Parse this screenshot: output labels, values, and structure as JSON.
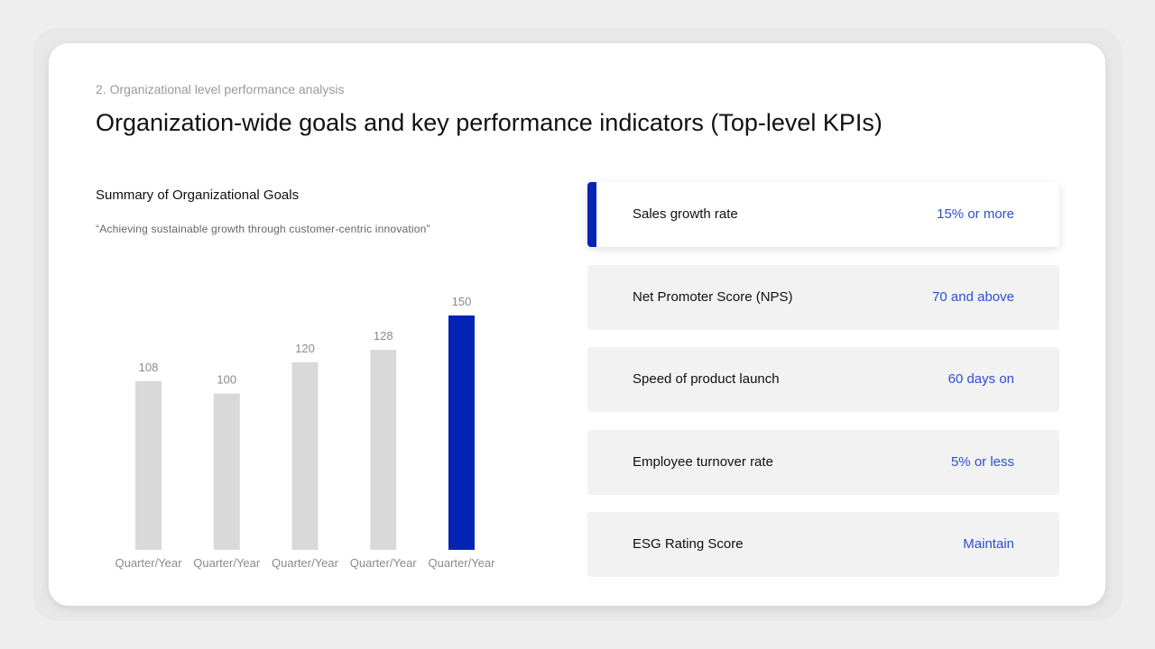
{
  "section_label": "2. Organizational level performance analysis",
  "title": "Organization-wide goals and key performance indicators (Top-level KPIs)",
  "goals": {
    "heading": "Summary of Organizational Goals",
    "quote": "“Achieving sustainable growth through customer-centric innovation”"
  },
  "chart_data": {
    "type": "bar",
    "categories": [
      "Quarter/Year",
      "Quarter/Year",
      "Quarter/Year",
      "Quarter/Year",
      "Quarter/Year"
    ],
    "values": [
      108,
      100,
      120,
      128,
      150
    ],
    "highlight_index": 4,
    "title": "",
    "xlabel": "",
    "ylabel": "",
    "ylim": [
      0,
      150
    ],
    "grid": false,
    "colors": {
      "default": "#d9d9d9",
      "highlight": "#0424b5"
    }
  },
  "kpis": [
    {
      "name": "Sales growth rate",
      "target": "15% or more",
      "active": true
    },
    {
      "name": "Net Promoter Score (NPS)",
      "target": "70 and above",
      "active": false
    },
    {
      "name": "Speed of product launch",
      "target": "60 days on",
      "active": false
    },
    {
      "name": "Employee turnover rate",
      "target": "5% or less",
      "active": false
    },
    {
      "name": "ESG Rating Score",
      "target": "Maintain",
      "active": false
    }
  ],
  "colors": {
    "accent": "#0424b5",
    "target_text": "#2e4fd1"
  }
}
